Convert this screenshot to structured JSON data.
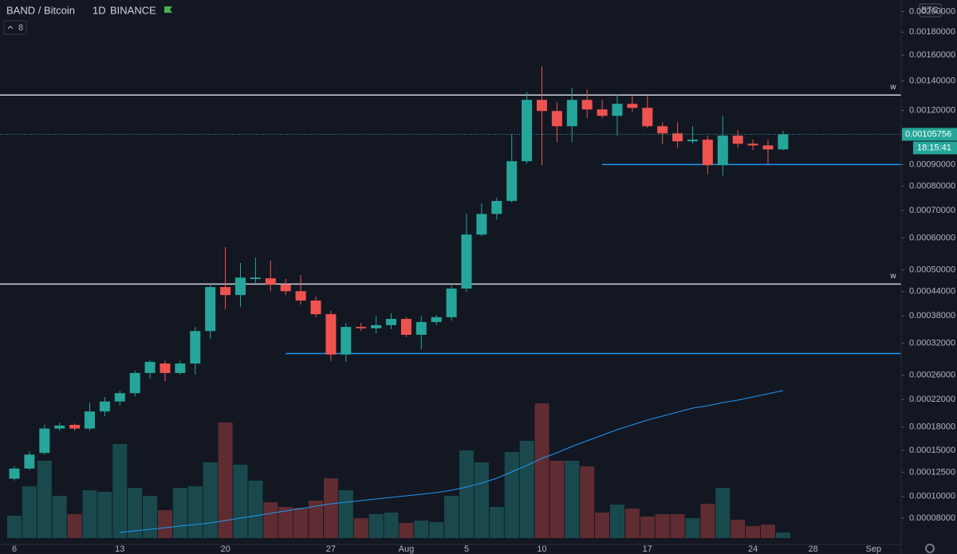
{
  "header": {
    "symbol": "BAND / Bitcoin",
    "interval": "1D",
    "exchange": "BINANCE",
    "indicator": "8",
    "currency": "BTC",
    "countdown": "18:15:41"
  },
  "chart_data": {
    "type": "candlestick",
    "scale": "log",
    "grid": false,
    "up_color": "#26a69a",
    "down_color": "#ef5350",
    "categories": [
      "6",
      null,
      null,
      null,
      null,
      null,
      null,
      "13",
      null,
      null,
      null,
      null,
      null,
      null,
      "20",
      null,
      null,
      null,
      null,
      null,
      null,
      "27",
      null,
      null,
      null,
      null,
      "Aug",
      null,
      null,
      null,
      "5",
      null,
      null,
      null,
      null,
      "10",
      null,
      null,
      null,
      null,
      null,
      null,
      "17",
      null,
      null,
      null,
      null,
      null,
      null,
      "24",
      null,
      null,
      null,
      "28",
      null,
      null,
      null,
      "Sep"
    ],
    "open": [
      0.000118,
      0.000129,
      0.000147,
      0.000178,
      0.000183,
      0.000178,
      0.000202,
      0.000217,
      0.00023,
      0.000264,
      0.000281,
      0.000264,
      0.000281,
      0.000346,
      0.000452,
      0.000431,
      0.000474,
      0.000476,
      0.000459,
      0.000441,
      0.000417,
      0.000384,
      0.000298,
      0.000355,
      0.000352,
      0.000359,
      0.000373,
      0.000338,
      0.000366,
      0.000377,
      0.000448,
      0.000612,
      0.000687,
      0.000738,
      0.000916,
      0.001268,
      0.001196,
      0.001104,
      0.001268,
      0.001206,
      0.001166,
      0.001242,
      0.001216,
      0.001104,
      0.001063,
      0.001019,
      0.001028,
      0.000897,
      0.00105,
      0.001006,
      0.000997,
      0.000976,
      null,
      null,
      null,
      null,
      null,
      null
    ],
    "high": [
      0.000132,
      0.000149,
      0.000183,
      0.000186,
      0.000185,
      0.000215,
      0.000224,
      0.000234,
      0.000268,
      0.000287,
      0.000286,
      0.000286,
      0.000355,
      0.000463,
      0.00057,
      0.00052,
      0.000537,
      0.000527,
      0.000474,
      0.000485,
      0.000427,
      0.000392,
      0.000364,
      0.000364,
      0.00038,
      0.000386,
      0.000377,
      0.00038,
      0.000382,
      0.000456,
      0.000687,
      0.000728,
      0.000751,
      0.001059,
      0.001322,
      0.001509,
      0.001252,
      0.00135,
      0.001339,
      0.001268,
      0.001306,
      0.001295,
      0.001295,
      0.001128,
      0.001128,
      0.001104,
      0.00105,
      0.001166,
      0.001081,
      0.001028,
      0.001028,
      0.001077,
      null,
      null,
      null,
      null,
      null,
      null
    ],
    "low": [
      0.000116,
      0.000127,
      0.000145,
      0.000175,
      0.000175,
      0.000175,
      0.000195,
      0.000211,
      0.000225,
      0.000254,
      0.00025,
      0.000261,
      0.000261,
      0.000329,
      0.000396,
      0.000401,
      0.000463,
      0.000441,
      0.000431,
      0.000407,
      0.000377,
      0.000286,
      0.000284,
      0.000346,
      0.000341,
      0.00035,
      0.000333,
      0.000308,
      0.000359,
      0.000369,
      0.000439,
      0.000607,
      0.000666,
      0.000731,
      0.000904,
      0.000897,
      0.001015,
      0.001015,
      0.001152,
      0.001152,
      0.00105,
      0.001191,
      0.001095,
      0.001006,
      0.000985,
      0.001006,
      0.000855,
      0.000848,
      0.000985,
      0.000972,
      0.000904,
      0.000972,
      null,
      null,
      null,
      null,
      null,
      null
    ],
    "close": [
      0.000129,
      0.000145,
      0.000178,
      0.000182,
      0.000178,
      0.000202,
      0.000217,
      0.00023,
      0.000264,
      0.000284,
      0.000264,
      0.000281,
      0.000346,
      0.000452,
      0.000431,
      0.000478,
      0.000478,
      0.000459,
      0.000441,
      0.000417,
      0.000384,
      0.000298,
      0.000355,
      0.000352,
      0.000359,
      0.000373,
      0.000338,
      0.000366,
      0.000377,
      0.000448,
      0.000612,
      0.000687,
      0.000738,
      0.000916,
      0.001268,
      0.001196,
      0.001104,
      0.001268,
      0.001206,
      0.001166,
      0.001242,
      0.001216,
      0.001104,
      0.001063,
      0.001019,
      0.001028,
      0.000897,
      0.00105,
      0.001006,
      0.000997,
      0.000976,
      0.00105756,
      null,
      null,
      null,
      null,
      null,
      null
    ],
    "volume": [
      28,
      65,
      97,
      53,
      30,
      60,
      58,
      118,
      63,
      53,
      35,
      63,
      65,
      95,
      145,
      92,
      72,
      45,
      39,
      38,
      47,
      75,
      60,
      25,
      30,
      32,
      19,
      22,
      20,
      53,
      110,
      95,
      39,
      108,
      122,
      169,
      97,
      97,
      90,
      32,
      42,
      37,
      27,
      30,
      30,
      25,
      43,
      63,
      23,
      15,
      17,
      7,
      null,
      null,
      null,
      null,
      null,
      null
    ],
    "volume_ma": [
      null,
      null,
      null,
      null,
      null,
      null,
      null,
      7,
      9,
      11,
      13,
      15,
      17,
      19,
      22,
      25,
      28,
      31,
      34,
      37,
      40,
      43,
      45,
      47,
      49,
      51,
      53,
      55,
      57,
      60,
      64,
      69,
      75,
      83,
      91,
      100,
      107,
      115,
      122,
      129,
      136,
      142,
      148,
      153,
      158,
      163,
      166,
      170,
      173,
      177,
      181,
      185,
      null,
      null,
      null,
      null,
      null,
      null
    ],
    "volume_lim": [
      0,
      200
    ],
    "volume_ma_color": "#2196f3",
    "ylim": [
      5.85e-05,
      0.00212
    ],
    "yticks": [
      {
        "value": 0.002,
        "label": "0.00200000"
      },
      {
        "value": 0.0018,
        "label": "0.00180000"
      },
      {
        "value": 0.0016,
        "label": "0.00160000"
      },
      {
        "value": 0.0014,
        "label": "0.00140000"
      },
      {
        "value": 0.0012,
        "label": "0.00120000"
      },
      {
        "value": 0.0009,
        "label": "0.00090000"
      },
      {
        "value": 0.0008,
        "label": "0.00080000"
      },
      {
        "value": 0.0007,
        "label": "0.00070000"
      },
      {
        "value": 0.0006,
        "label": "0.00060000"
      },
      {
        "value": 0.0005,
        "label": "0.00050000"
      },
      {
        "value": 0.00044,
        "label": "0.00044000"
      },
      {
        "value": 0.00038,
        "label": "0.00038000"
      },
      {
        "value": 0.00032,
        "label": "0.00032000"
      },
      {
        "value": 0.00026,
        "label": "0.00026000"
      },
      {
        "value": 0.00022,
        "label": "0.00022000"
      },
      {
        "value": 0.00018,
        "label": "0.00018000"
      },
      {
        "value": 0.00015,
        "label": "0.00015000"
      },
      {
        "value": 0.000125,
        "label": "0.00012500"
      },
      {
        "value": 0.0001,
        "label": "0.00010000"
      },
      {
        "value": 8e-05,
        "label": "0.00008000"
      }
    ],
    "levels": [
      {
        "value": 0.0013,
        "color": "#d1d4dc",
        "label": "w"
      },
      {
        "value": 0.00046,
        "color": "#d1d4dc",
        "label": "w"
      },
      {
        "value": 0.0009,
        "color": "#2196f3",
        "start": 39
      },
      {
        "value": 0.0003,
        "color": "#2196f3",
        "start": 18
      }
    ]
  }
}
